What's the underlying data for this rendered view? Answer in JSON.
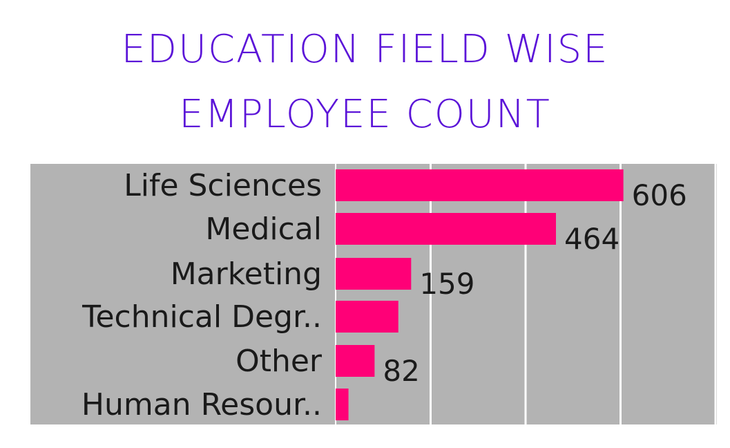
{
  "chart_data": {
    "type": "bar",
    "orientation": "horizontal",
    "title_lines": [
      "EDUCATION  FIELD  WISE",
      "EMPLOYEE  COUNT"
    ],
    "categories": [
      "Life Sciences",
      "Medical",
      "Marketing",
      "Technical Degr..",
      "Other",
      "Human Resour.."
    ],
    "values": [
      606,
      464,
      159,
      132,
      82,
      27
    ],
    "data_labels": [
      "606",
      "464",
      "159",
      "",
      "82",
      ""
    ],
    "xlim": [
      0,
      800
    ],
    "gridlines": [
      0,
      200,
      400,
      600,
      800
    ],
    "grid": true,
    "legend": "none",
    "colors": {
      "bar": "#ff0077",
      "plot_background": "#b3b3b3",
      "title": "#5b14d8",
      "gridline": "#ffffff"
    }
  }
}
